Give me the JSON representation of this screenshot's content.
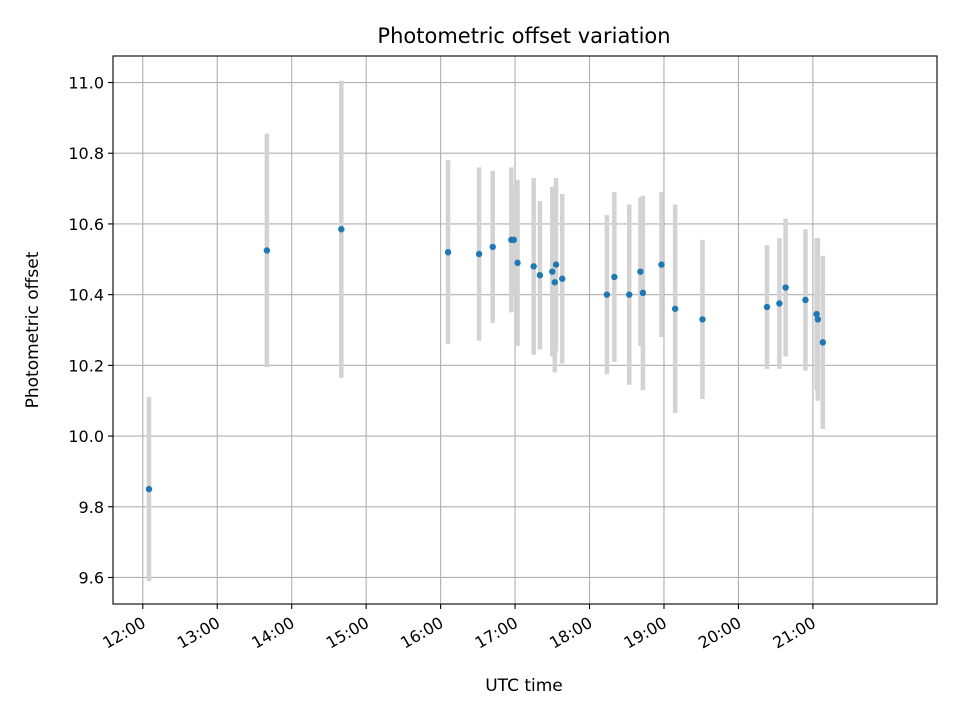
{
  "chart_data": {
    "type": "scatter",
    "title": "Photometric offset variation",
    "xlabel": "UTC time",
    "ylabel": "Photometric offset",
    "xlim": [
      "11:36",
      "22:40"
    ],
    "ylim": [
      9.525,
      11.075
    ],
    "x_tick_labels": [
      "12:00",
      "13:00",
      "14:00",
      "15:00",
      "16:00",
      "17:00",
      "18:00",
      "19:00",
      "20:00",
      "21:00"
    ],
    "y_tick_labels": [
      "9.6",
      "9.8",
      "10.0",
      "10.2",
      "10.4",
      "10.6",
      "10.8",
      "11.0"
    ],
    "grid": true,
    "colors": {
      "point": "#1f77b4",
      "errorbar": "#d3d3d3"
    },
    "series": [
      {
        "points": [
          {
            "x": "12:05",
            "y": 9.85,
            "yerr": 0.26
          },
          {
            "x": "13:40",
            "y": 10.525,
            "yerr": 0.33
          },
          {
            "x": "14:40",
            "y": 10.585,
            "yerr": 0.42
          },
          {
            "x": "16:06",
            "y": 10.52,
            "yerr": 0.26
          },
          {
            "x": "16:31",
            "y": 10.515,
            "yerr": 0.245
          },
          {
            "x": "16:42",
            "y": 10.535,
            "yerr": 0.215
          },
          {
            "x": "16:57",
            "y": 10.555,
            "yerr": 0.205
          },
          {
            "x": "16:59",
            "y": 10.555,
            "yerr": 0.155
          },
          {
            "x": "17:02",
            "y": 10.49,
            "yerr": 0.235
          },
          {
            "x": "17:15",
            "y": 10.48,
            "yerr": 0.25
          },
          {
            "x": "17:20",
            "y": 10.455,
            "yerr": 0.21
          },
          {
            "x": "17:30",
            "y": 10.465,
            "yerr": 0.24
          },
          {
            "x": "17:32",
            "y": 10.435,
            "yerr": 0.255
          },
          {
            "x": "17:33",
            "y": 10.485,
            "yerr": 0.245
          },
          {
            "x": "17:38",
            "y": 10.445,
            "yerr": 0.24
          },
          {
            "x": "18:14",
            "y": 10.4,
            "yerr": 0.225
          },
          {
            "x": "18:20",
            "y": 10.45,
            "yerr": 0.24
          },
          {
            "x": "18:32",
            "y": 10.4,
            "yerr": 0.255
          },
          {
            "x": "18:41",
            "y": 10.465,
            "yerr": 0.21
          },
          {
            "x": "18:43",
            "y": 10.405,
            "yerr": 0.275
          },
          {
            "x": "18:58",
            "y": 10.485,
            "yerr": 0.205
          },
          {
            "x": "19:09",
            "y": 10.36,
            "yerr": 0.295
          },
          {
            "x": "19:31",
            "y": 10.33,
            "yerr": 0.225
          },
          {
            "x": "20:23",
            "y": 10.365,
            "yerr": 0.175
          },
          {
            "x": "20:33",
            "y": 10.375,
            "yerr": 0.185
          },
          {
            "x": "20:38",
            "y": 10.42,
            "yerr": 0.195
          },
          {
            "x": "20:54",
            "y": 10.385,
            "yerr": 0.2
          },
          {
            "x": "21:03",
            "y": 10.345,
            "yerr": 0.215
          },
          {
            "x": "21:04",
            "y": 10.33,
            "yerr": 0.23
          },
          {
            "x": "21:08",
            "y": 10.265,
            "yerr": 0.245
          }
        ]
      }
    ]
  }
}
